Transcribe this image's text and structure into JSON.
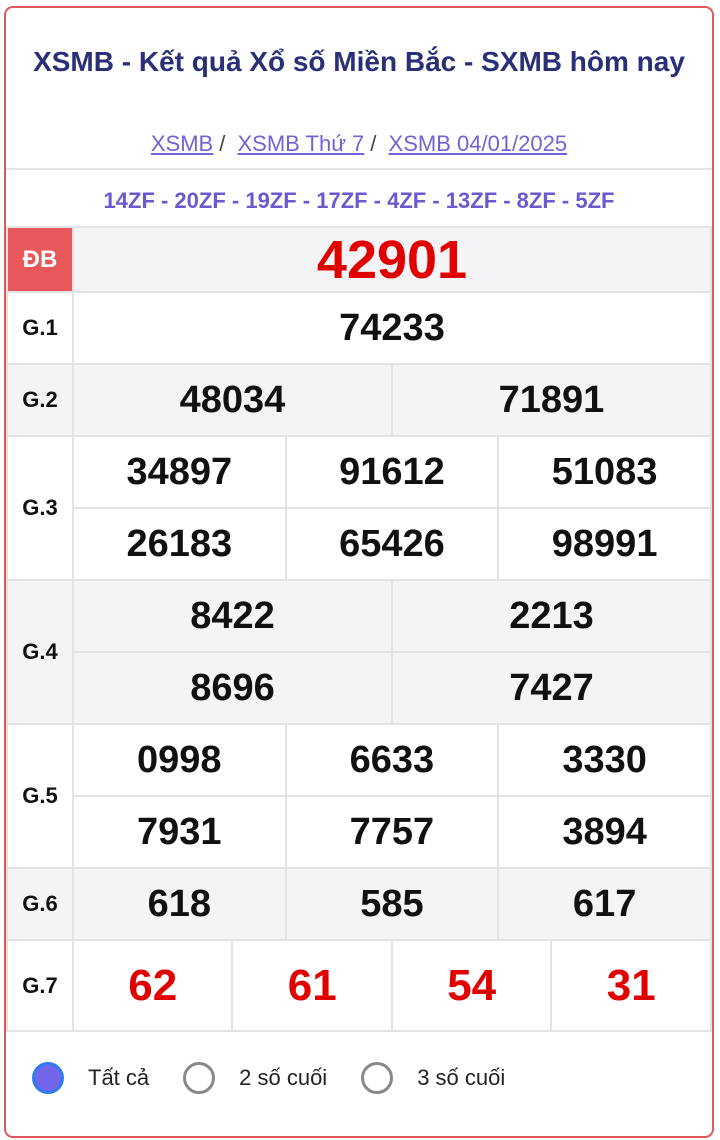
{
  "title": "XSMB - Kết quả Xổ số Miền Bắc - SXMB hôm nay",
  "breadcrumb": [
    "XSMB",
    "XSMB Thứ 7",
    "XSMB 04/01/2025"
  ],
  "codes": "14ZF - 20ZF - 19ZF - 17ZF - 4ZF - 13ZF - 8ZF - 5ZF",
  "prizes": {
    "db": {
      "label": "ĐB",
      "values": [
        "42901"
      ]
    },
    "g1": {
      "label": "G.1",
      "values": [
        "74233"
      ]
    },
    "g2": {
      "label": "G.2",
      "values": [
        "48034",
        "71891"
      ]
    },
    "g3": {
      "label": "G.3",
      "values": [
        "34897",
        "91612",
        "51083",
        "26183",
        "65426",
        "98991"
      ]
    },
    "g4": {
      "label": "G.4",
      "values": [
        "8422",
        "2213",
        "8696",
        "7427"
      ]
    },
    "g5": {
      "label": "G.5",
      "values": [
        "0998",
        "6633",
        "3330",
        "7931",
        "7757",
        "3894"
      ]
    },
    "g6": {
      "label": "G.6",
      "values": [
        "618",
        "585",
        "617"
      ]
    },
    "g7": {
      "label": "G.7",
      "values": [
        "62",
        "61",
        "54",
        "31"
      ]
    }
  },
  "filter": {
    "options": [
      "Tất cả",
      "2 số cuối",
      "3 số cuối"
    ],
    "selected": "Tất cả"
  },
  "colors": {
    "title": "#2a2f78",
    "link": "#7063d8",
    "special": "#e00000",
    "border": "#e0575a"
  }
}
